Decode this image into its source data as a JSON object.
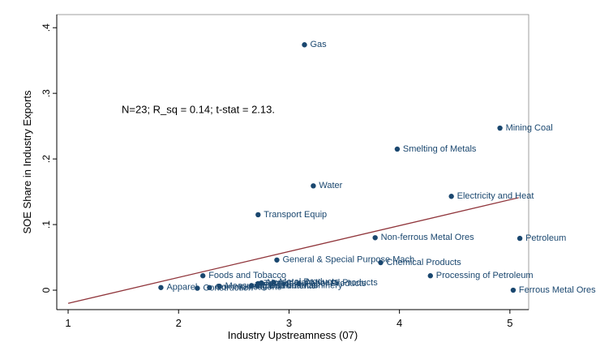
{
  "chart_data": {
    "type": "scatter",
    "annotation": "N=23; R_sq = 0.14; t-stat = 2.13.",
    "x_label": "Industry Upstreamness (07)",
    "y_label": "SOE Share in Industry Exports",
    "xlim": [
      0.897,
      5.17
    ],
    "ylim": [
      -0.0296,
      0.42
    ],
    "xticks": [
      1,
      2,
      3,
      4,
      5
    ],
    "yticks": [
      0,
      {
        "value": 0.1,
        "label": ".1"
      },
      {
        "value": 0.2,
        "label": ".2"
      },
      {
        "value": 0.3,
        "label": ".3"
      },
      {
        "value": 0.4,
        "label": ".4"
      }
    ],
    "series": [
      {
        "color": "#1a476f",
        "labels": [
          "Gas",
          "Mining Coal",
          "Smelting of Metals",
          "Water",
          "Electricity and Heat",
          "Transport Equip",
          "Non-ferrous Metal Ores",
          "Petroleum",
          "General & Special Purpose Mach",
          "Chemical Products",
          "Processing of Petroleum",
          "Ferrous Metal Ores",
          "Foods and Tobacco",
          "Apparel",
          "Construction",
          "Communications",
          "Measuring Instruments",
          "Wood Products",
          "Electrical Machinery",
          "Textiles",
          "Non-metal Mineral Products",
          "Metal Products",
          "Paper Products"
        ],
        "x": [
          3.14,
          4.91,
          3.98,
          3.22,
          4.47,
          2.72,
          3.78,
          5.09,
          2.89,
          3.83,
          4.28,
          5.03,
          2.22,
          1.84,
          2.17,
          2.28,
          2.37,
          2.66,
          2.71,
          2.72,
          2.75,
          2.86,
          3.09
        ],
        "values": [
          0.374,
          0.247,
          0.215,
          0.159,
          0.143,
          0.115,
          0.08,
          0.079,
          0.046,
          0.042,
          0.022,
          0.0,
          0.022,
          0.004,
          0.003,
          0.004,
          0.006,
          0.007,
          0.007,
          0.01,
          0.011,
          0.012,
          0.01
        ]
      }
    ],
    "fit": {
      "color": "#90353b",
      "x": [
        1,
        5.08
      ],
      "values": [
        -0.02,
        0.141
      ]
    }
  }
}
